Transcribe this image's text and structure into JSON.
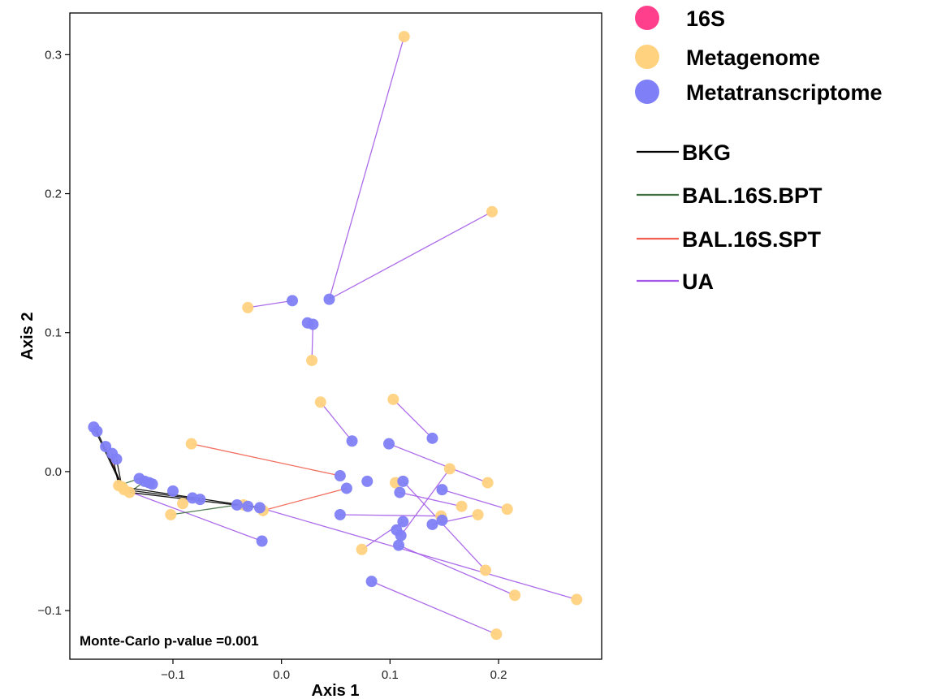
{
  "chart_data": {
    "type": "scatter",
    "xlabel": "Axis 1",
    "ylabel": "Axis 2",
    "xlim": [
      -0.195,
      0.295
    ],
    "ylim": [
      -0.135,
      0.33
    ],
    "xticks": [
      -0.1,
      0.0,
      0.1,
      0.2
    ],
    "xtick_labels": [
      "−0.1",
      "0.0",
      "0.1",
      "0.2"
    ],
    "yticks": [
      -0.1,
      0.0,
      0.1,
      0.2,
      0.3
    ],
    "ytick_labels": [
      "−0.1",
      "0.0",
      "0.1",
      "0.2",
      "0.3"
    ],
    "grid": false,
    "annotation": "Monte-Carlo p-value =0.001",
    "point_legend": [
      {
        "name": "16S",
        "color": "#ff3f8c"
      },
      {
        "name": "Metagenome",
        "color": "#ffd27f"
      },
      {
        "name": "Metatranscriptome",
        "color": "#7f7ff7"
      }
    ],
    "line_legend": [
      {
        "name": "BKG",
        "color": "#000000"
      },
      {
        "name": "BAL.16S.BPT",
        "color": "#3f6e3f"
      },
      {
        "name": "BAL.16S.SPT",
        "color": "#f05f4f"
      },
      {
        "name": "UA",
        "color": "#a45ce8"
      }
    ],
    "series": [
      {
        "name": "Metagenome",
        "color": "#ffd27f",
        "points": [
          [
            0.113,
            0.313
          ],
          [
            0.194,
            0.187
          ],
          [
            -0.031,
            0.118
          ],
          [
            0.028,
            0.08
          ],
          [
            0.036,
            0.05
          ],
          [
            0.103,
            0.052
          ],
          [
            -0.083,
            0.02
          ],
          [
            0.155,
            0.002
          ],
          [
            0.105,
            -0.008
          ],
          [
            0.19,
            -0.008
          ],
          [
            0.166,
            -0.025
          ],
          [
            0.208,
            -0.027
          ],
          [
            0.147,
            -0.032
          ],
          [
            0.181,
            -0.031
          ],
          [
            0.074,
            -0.056
          ],
          [
            0.188,
            -0.071
          ],
          [
            0.215,
            -0.089
          ],
          [
            0.272,
            -0.092
          ],
          [
            0.198,
            -0.117
          ],
          [
            -0.15,
            -0.01
          ],
          [
            -0.147,
            -0.011
          ],
          [
            -0.145,
            -0.013
          ],
          [
            -0.14,
            -0.015
          ],
          [
            -0.102,
            -0.031
          ],
          [
            -0.091,
            -0.023
          ],
          [
            -0.035,
            -0.024
          ],
          [
            -0.017,
            -0.028
          ]
        ]
      },
      {
        "name": "Metatranscriptome",
        "color": "#7f7ff7",
        "points": [
          [
            0.044,
            0.124
          ],
          [
            0.01,
            0.123
          ],
          [
            0.024,
            0.107
          ],
          [
            0.029,
            0.106
          ],
          [
            0.139,
            0.024
          ],
          [
            0.065,
            0.022
          ],
          [
            0.099,
            0.02
          ],
          [
            0.054,
            -0.003
          ],
          [
            0.079,
            -0.007
          ],
          [
            0.112,
            -0.007
          ],
          [
            0.06,
            -0.012
          ],
          [
            0.109,
            -0.015
          ],
          [
            0.148,
            -0.013
          ],
          [
            0.054,
            -0.031
          ],
          [
            0.112,
            -0.036
          ],
          [
            0.148,
            -0.035
          ],
          [
            0.139,
            -0.038
          ],
          [
            0.106,
            -0.042
          ],
          [
            0.11,
            -0.046
          ],
          [
            0.108,
            -0.053
          ],
          [
            0.083,
            -0.079
          ],
          [
            -0.173,
            0.032
          ],
          [
            -0.17,
            0.029
          ],
          [
            -0.162,
            0.018
          ],
          [
            -0.156,
            0.013
          ],
          [
            -0.152,
            0.009
          ],
          [
            -0.131,
            -0.005
          ],
          [
            -0.126,
            -0.007
          ],
          [
            -0.122,
            -0.008
          ],
          [
            -0.119,
            -0.009
          ],
          [
            -0.1,
            -0.014
          ],
          [
            -0.082,
            -0.019
          ],
          [
            -0.075,
            -0.02
          ],
          [
            -0.041,
            -0.024
          ],
          [
            -0.031,
            -0.025
          ],
          [
            -0.02,
            -0.026
          ],
          [
            -0.018,
            -0.05
          ]
        ]
      }
    ],
    "segments": [
      {
        "group": "UA",
        "from": [
          0.044,
          0.124
        ],
        "to": [
          0.113,
          0.313
        ]
      },
      {
        "group": "UA",
        "from": [
          0.044,
          0.124
        ],
        "to": [
          0.194,
          0.187
        ]
      },
      {
        "group": "UA",
        "from": [
          0.01,
          0.123
        ],
        "to": [
          -0.031,
          0.118
        ]
      },
      {
        "group": "UA",
        "from": [
          0.029,
          0.106
        ],
        "to": [
          0.028,
          0.08
        ]
      },
      {
        "group": "UA",
        "from": [
          0.065,
          0.022
        ],
        "to": [
          0.036,
          0.05
        ]
      },
      {
        "group": "UA",
        "from": [
          0.139,
          0.024
        ],
        "to": [
          0.103,
          0.052
        ]
      },
      {
        "group": "UA",
        "from": [
          0.099,
          0.02
        ],
        "to": [
          0.19,
          -0.008
        ]
      },
      {
        "group": "UA",
        "from": [
          0.148,
          -0.013
        ],
        "to": [
          0.208,
          -0.027
        ]
      },
      {
        "group": "UA",
        "from": [
          0.109,
          -0.015
        ],
        "to": [
          0.166,
          -0.025
        ]
      },
      {
        "group": "UA",
        "from": [
          0.139,
          -0.038
        ],
        "to": [
          0.181,
          -0.031
        ]
      },
      {
        "group": "UA",
        "from": [
          0.054,
          -0.031
        ],
        "to": [
          0.147,
          -0.032
        ]
      },
      {
        "group": "UA",
        "from": [
          0.112,
          -0.036
        ],
        "to": [
          0.074,
          -0.056
        ]
      },
      {
        "group": "UA",
        "from": [
          0.11,
          -0.046
        ],
        "to": [
          0.155,
          0.002
        ]
      },
      {
        "group": "UA",
        "from": [
          0.112,
          -0.007
        ],
        "to": [
          0.188,
          -0.071
        ]
      },
      {
        "group": "UA",
        "from": [
          0.108,
          -0.053
        ],
        "to": [
          0.215,
          -0.089
        ]
      },
      {
        "group": "UA",
        "from": [
          0.083,
          -0.079
        ],
        "to": [
          0.198,
          -0.117
        ]
      },
      {
        "group": "UA",
        "from": [
          -0.02,
          -0.026
        ],
        "to": [
          0.272,
          -0.092
        ]
      },
      {
        "group": "UA",
        "from": [
          -0.145,
          -0.013
        ],
        "to": [
          -0.018,
          -0.05
        ]
      },
      {
        "group": "BAL.16S.SPT",
        "from": [
          0.054,
          -0.003
        ],
        "to": [
          -0.083,
          0.02
        ]
      },
      {
        "group": "BAL.16S.SPT",
        "from": [
          0.06,
          -0.012
        ],
        "to": [
          -0.017,
          -0.028
        ]
      },
      {
        "group": "BAL.16S.SPT",
        "from": [
          -0.162,
          0.018
        ],
        "to": [
          -0.147,
          -0.011
        ]
      },
      {
        "group": "BAL.16S.BPT",
        "from": [
          -0.131,
          -0.005
        ],
        "to": [
          -0.15,
          -0.01
        ]
      },
      {
        "group": "BAL.16S.BPT",
        "from": [
          -0.041,
          -0.024
        ],
        "to": [
          -0.102,
          -0.031
        ]
      },
      {
        "group": "BAL.16S.BPT",
        "from": [
          -0.126,
          -0.007
        ],
        "to": [
          -0.14,
          -0.015
        ]
      },
      {
        "group": "BKG",
        "from": [
          -0.173,
          0.032
        ],
        "to": [
          -0.147,
          -0.011
        ]
      },
      {
        "group": "BKG",
        "from": [
          -0.17,
          0.029
        ],
        "to": [
          -0.145,
          -0.013
        ]
      },
      {
        "group": "BKG",
        "from": [
          -0.156,
          0.013
        ],
        "to": [
          -0.15,
          -0.01
        ]
      },
      {
        "group": "BKG",
        "from": [
          -0.152,
          0.009
        ],
        "to": [
          -0.147,
          -0.011
        ]
      },
      {
        "group": "BKG",
        "from": [
          -0.02,
          -0.026
        ],
        "to": [
          -0.147,
          -0.011
        ]
      },
      {
        "group": "BKG",
        "from": [
          -0.075,
          -0.02
        ],
        "to": [
          -0.145,
          -0.013
        ]
      },
      {
        "group": "BKG",
        "from": [
          -0.031,
          -0.025
        ],
        "to": [
          -0.14,
          -0.015
        ]
      }
    ]
  }
}
